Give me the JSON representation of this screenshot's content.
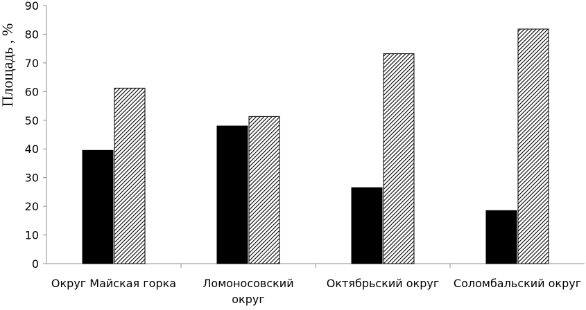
{
  "chart_data": {
    "type": "bar",
    "title": "",
    "xlabel": "",
    "ylabel": "Площадь , %",
    "ylim": [
      0,
      90
    ],
    "yticks": [
      0,
      10,
      20,
      30,
      40,
      50,
      60,
      70,
      80,
      90
    ],
    "grid": false,
    "legend": "none",
    "categories": [
      [
        "Округ Майская горка"
      ],
      [
        "Ломоносовский",
        "округ"
      ],
      [
        "Октябрьский округ"
      ],
      [
        "Соломбальский округ"
      ]
    ],
    "series": [
      {
        "values": [
          39.5,
          48,
          26.5,
          18.5
        ],
        "color": "#000000",
        "fill": "solid"
      },
      {
        "values": [
          61.2,
          51.3,
          73.2,
          81.8
        ],
        "color": "#000000",
        "fill": "diagonal-hatch"
      }
    ]
  }
}
